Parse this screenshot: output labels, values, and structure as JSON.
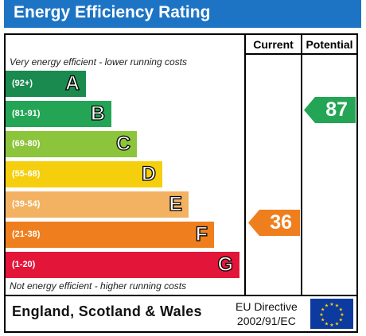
{
  "title": "Energy Efficiency Rating",
  "columns": {
    "current": "Current",
    "potential": "Potential"
  },
  "notes": {
    "top": "Very energy efficient - lower running costs",
    "bottom": "Not energy efficient - higher running costs"
  },
  "bands": [
    {
      "range": "(92+)",
      "letter": "A",
      "color": "#1a8a4f"
    },
    {
      "range": "(81-91)",
      "letter": "B",
      "color": "#24a555"
    },
    {
      "range": "(69-80)",
      "letter": "C",
      "color": "#8cc43c"
    },
    {
      "range": "(55-68)",
      "letter": "D",
      "color": "#f5cf0d"
    },
    {
      "range": "(39-54)",
      "letter": "E",
      "color": "#f2b262"
    },
    {
      "range": "(21-38)",
      "letter": "F",
      "color": "#ef7f1e"
    },
    {
      "range": "(1-20)",
      "letter": "G",
      "color": "#e3163a"
    }
  ],
  "current": {
    "value": "36",
    "band": "F",
    "color": "#ef7f1e"
  },
  "potential": {
    "value": "87",
    "band": "B",
    "color": "#24a555"
  },
  "footer": {
    "region": "England, Scotland & Wales",
    "directive_line1": "EU Directive",
    "directive_line2": "2002/91/EC"
  }
}
